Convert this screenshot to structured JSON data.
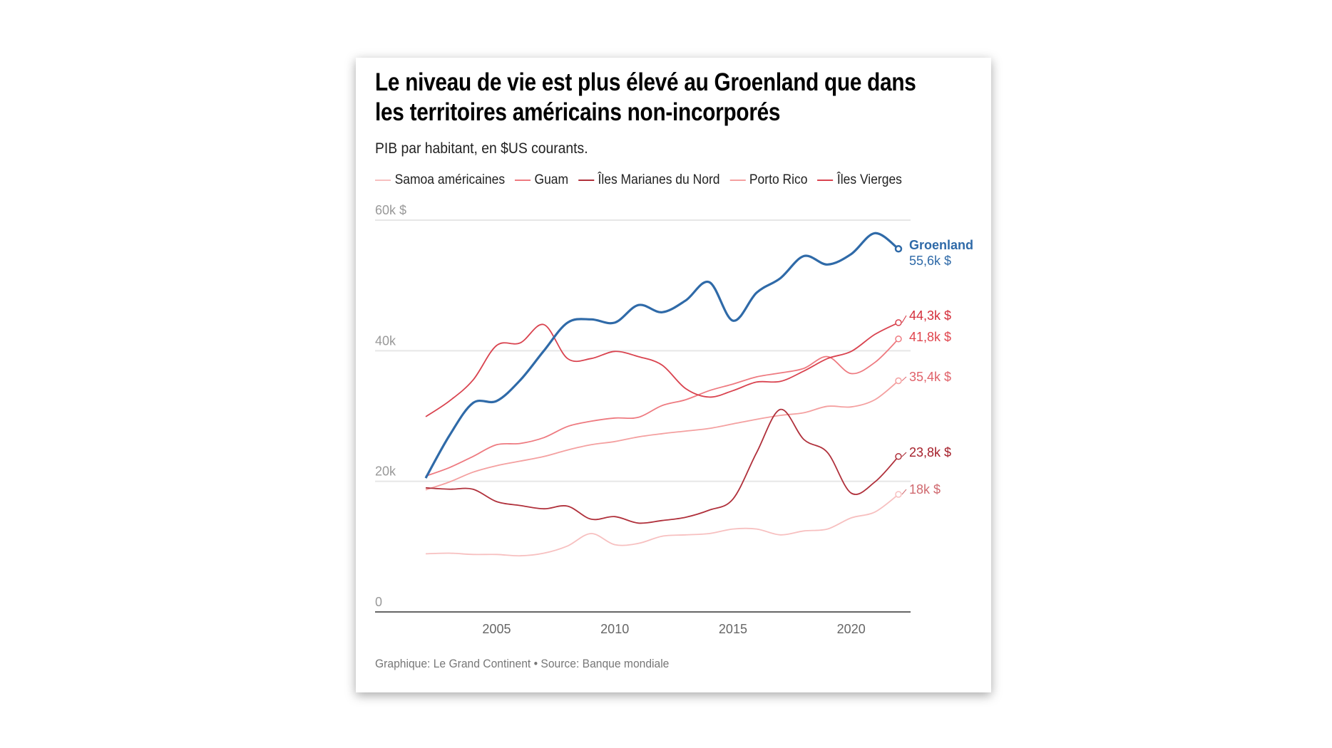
{
  "title": "Le niveau de vie est plus élevé au Groenland que dans les territoires américains non-incorporés",
  "subtitle": "PIB par habitant, en $US courants.",
  "footer": "Graphique: Le Grand Continent • Source: Banque mondiale",
  "legend": [
    {
      "label": "Samoa américaines",
      "color": "#f7c0c0"
    },
    {
      "label": "Guam",
      "color": "#ee7a80"
    },
    {
      "label": "Îles Marianes du Nord",
      "color": "#b0303b"
    },
    {
      "label": "Porto Rico",
      "color": "#f4a0a0"
    },
    {
      "label": "Îles Vierges",
      "color": "#d9434f"
    }
  ],
  "chart_data": {
    "type": "line",
    "title": "Le niveau de vie est plus élevé au Groenland que dans les territoires américains non-incorporés",
    "subtitle": "PIB par habitant, en $US courants.",
    "xlabel": "",
    "ylabel": "",
    "ylim": [
      0,
      60000
    ],
    "xlim": [
      2002,
      2022
    ],
    "grid": true,
    "legend_position": "top",
    "y_ticks": [
      {
        "value": 0,
        "label": "0"
      },
      {
        "value": 20000,
        "label": "20k"
      },
      {
        "value": 40000,
        "label": "40k"
      },
      {
        "value": 60000,
        "label": "60k $"
      }
    ],
    "x_ticks": [
      {
        "value": 2005,
        "label": "2005"
      },
      {
        "value": 2010,
        "label": "2010"
      },
      {
        "value": 2015,
        "label": "2015"
      },
      {
        "value": 2020,
        "label": "2020"
      }
    ],
    "x": [
      2002,
      2003,
      2004,
      2005,
      2006,
      2007,
      2008,
      2009,
      2010,
      2011,
      2012,
      2013,
      2014,
      2015,
      2016,
      2017,
      2018,
      2019,
      2020,
      2021,
      2022
    ],
    "series": [
      {
        "name": "Samoa américaines",
        "color": "#f7c0c0",
        "end_label": "18k $",
        "label_color": "#d06a70",
        "values": [
          8900,
          9000,
          8800,
          8800,
          8600,
          9000,
          10100,
          12000,
          10300,
          10500,
          11600,
          11800,
          12000,
          12700,
          12700,
          11800,
          12400,
          12700,
          14400,
          15300,
          18000
        ]
      },
      {
        "name": "Porto Rico",
        "color": "#f4a0a0",
        "end_label": "35,4k $",
        "label_color": "#e0626a",
        "values": [
          18700,
          19900,
          21400,
          22400,
          23100,
          23800,
          24800,
          25600,
          26100,
          26800,
          27300,
          27700,
          28100,
          28800,
          29500,
          30100,
          30500,
          31500,
          31400,
          32500,
          35400
        ]
      },
      {
        "name": "Guam",
        "color": "#ee7a80",
        "end_label": "41,8k $",
        "label_color": "#e0464f",
        "values": [
          20800,
          22100,
          23800,
          25600,
          25800,
          26700,
          28400,
          29200,
          29700,
          29800,
          31600,
          32500,
          33900,
          34900,
          36000,
          36600,
          37300,
          39100,
          36500,
          38200,
          41800
        ]
      },
      {
        "name": "Îles Marianes du Nord",
        "color": "#b0303b",
        "end_label": "23,8k $",
        "label_color": "#a51f2a",
        "values": [
          19000,
          18800,
          18800,
          16900,
          16300,
          15800,
          16200,
          14200,
          14600,
          13600,
          14000,
          14500,
          15600,
          17300,
          24400,
          31000,
          26400,
          24400,
          18200,
          19900,
          23800
        ]
      },
      {
        "name": "Îles Vierges",
        "color": "#d9434f",
        "end_label": "44,3k $",
        "label_color": "#d42f3c",
        "values": [
          29900,
          32300,
          35500,
          40800,
          41200,
          44000,
          38800,
          38800,
          39900,
          39100,
          37800,
          34200,
          32900,
          33900,
          35200,
          35300,
          36900,
          38800,
          39900,
          42500,
          44300
        ]
      },
      {
        "name": "Groenland",
        "color": "#2f6aa8",
        "end_label": "55,6k $",
        "label_color": "#2f6aa8",
        "values": [
          20500,
          27000,
          32000,
          32300,
          35500,
          40000,
          44300,
          44800,
          44300,
          47000,
          45900,
          47700,
          50500,
          44600,
          48900,
          51100,
          54500,
          53200,
          54800,
          58000,
          55600
        ]
      }
    ]
  }
}
